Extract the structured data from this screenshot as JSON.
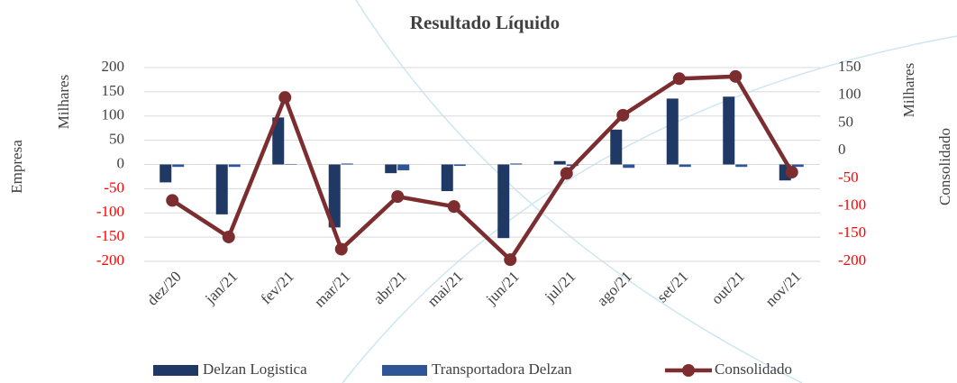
{
  "chart_data": {
    "type": "bar",
    "title": "Resultado Líquido",
    "y_label": "Empresa",
    "y_unit_label": "Milhares",
    "y2_label": "Consolidado",
    "y2_unit_label": "Milhares",
    "categories": [
      "dez/20",
      "jan/21",
      "fev/21",
      "mar/21",
      "abr/21",
      "mai/21",
      "jun/21",
      "jul/21",
      "ago/21",
      "set/21",
      "out/21",
      "nov/21"
    ],
    "series": [
      {
        "name": "Delzan Logistica",
        "type": "bar",
        "color": "#1f3864",
        "values": [
          -37,
          -103,
          97,
          -130,
          -18,
          -55,
          -152,
          7,
          72,
          136,
          140,
          -33
        ]
      },
      {
        "name": "Transportadora Delzan",
        "type": "bar",
        "color": "#2f5597",
        "values": [
          -5,
          -5,
          1,
          2,
          -12,
          -3,
          2,
          -3,
          -7,
          -5,
          -5,
          -5
        ]
      },
      {
        "name": "Consolidado",
        "type": "line",
        "axis": "y2",
        "color": "#7b2d2f",
        "values": [
          -90,
          -156,
          96,
          -178,
          -83,
          -101,
          -197,
          -41,
          64,
          130,
          134,
          -39
        ]
      }
    ],
    "ylim": [
      -200,
      200
    ],
    "yticks": [
      200,
      150,
      100,
      50,
      0,
      -50,
      -100,
      -150,
      -200
    ],
    "y2lim": [
      -200,
      150
    ],
    "y2ticks": [
      150,
      100,
      50,
      0,
      -50,
      -100,
      -150,
      -200
    ],
    "grid": true,
    "negative_tick_color": "#ff0000",
    "legend": "bottom"
  }
}
